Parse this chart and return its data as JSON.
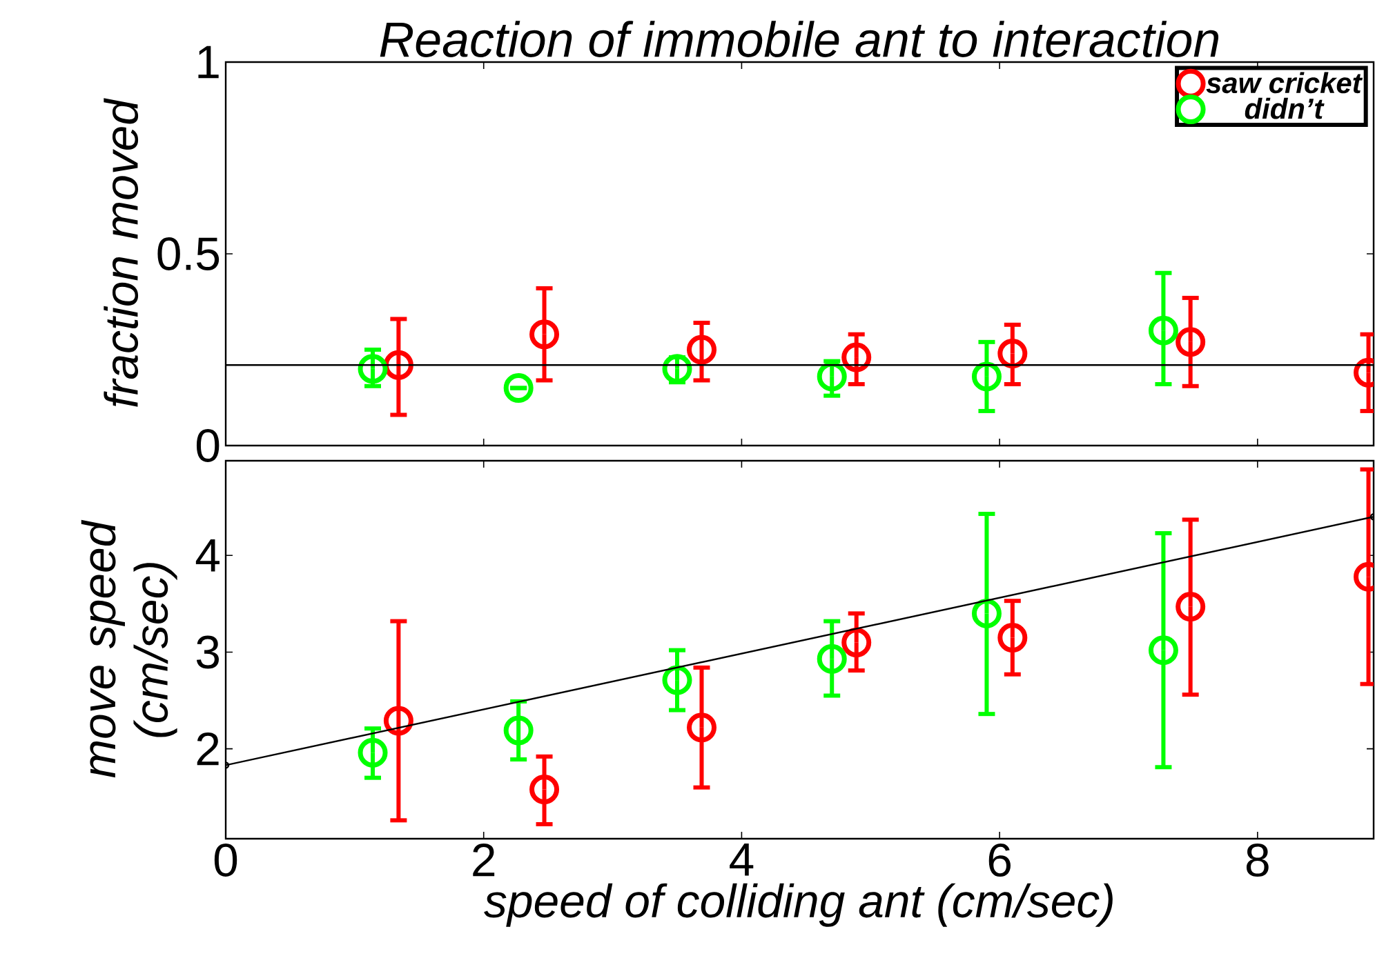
{
  "chart_data": [
    {
      "type": "scatter",
      "title": "Reaction of immobile ant to interaction",
      "ylabel": "fraction moved",
      "xlim": [
        0,
        8.9
      ],
      "xticks": [
        0,
        2,
        4,
        6,
        8
      ],
      "ylim": [
        0,
        1
      ],
      "yticks": [
        0,
        0.5,
        1
      ],
      "tick_labels": "y",
      "marker": "circle",
      "legend": "top right",
      "ref_lines": [
        {
          "axis": "y",
          "value": 0.21,
          "color": "#000000"
        }
      ],
      "series": [
        {
          "name": "saw cricket",
          "color": "#ff0000",
          "x": [
            1.34,
            2.47,
            3.69,
            4.89,
            6.1,
            7.48,
            8.86
          ],
          "values": [
            0.21,
            0.29,
            0.25,
            0.23,
            0.24,
            0.27,
            0.19
          ],
          "errors": [
            [
              0.08,
              0.33
            ],
            [
              0.17,
              0.41
            ],
            [
              0.17,
              0.32
            ],
            [
              0.16,
              0.29
            ],
            [
              0.16,
              0.315
            ],
            [
              0.155,
              0.385
            ],
            [
              0.09,
              0.29
            ]
          ]
        },
        {
          "name": "didn’t",
          "color": "#00ff00",
          "x": [
            1.14,
            2.27,
            3.5,
            4.7,
            5.9,
            7.27
          ],
          "values": [
            0.2,
            0.15,
            0.2,
            0.18,
            0.18,
            0.3
          ],
          "errors": [
            [
              0.155,
              0.25
            ],
            null,
            [
              0.165,
              0.23
            ],
            [
              0.13,
              0.22
            ],
            [
              0.09,
              0.27
            ],
            [
              0.16,
              0.45
            ]
          ]
        }
      ]
    },
    {
      "type": "scatter",
      "xlabel": "speed of colliding ant (cm/sec)",
      "ylabel": "move speed (cm/sec)",
      "xlim": [
        0,
        8.9
      ],
      "xticks": [
        0,
        2,
        4,
        6,
        8
      ],
      "ylim": [
        1.07,
        4.98
      ],
      "yticks": [
        2,
        3,
        4
      ],
      "marker": "circle",
      "series": [
        {
          "color": "#ff0000",
          "x": [
            1.34,
            2.47,
            3.69,
            4.89,
            6.1,
            7.48,
            8.86
          ],
          "values": [
            2.29,
            1.58,
            2.22,
            3.1,
            3.15,
            3.47,
            3.78
          ],
          "errors": [
            [
              1.26,
              3.32
            ],
            [
              1.22,
              1.92
            ],
            [
              1.6,
              2.84
            ],
            [
              2.81,
              3.4
            ],
            [
              2.77,
              3.53
            ],
            [
              2.56,
              4.37
            ],
            [
              2.67,
              4.89
            ]
          ]
        },
        {
          "color": "#00ff00",
          "x": [
            1.14,
            2.27,
            3.5,
            4.7,
            5.9,
            7.27
          ],
          "values": [
            1.96,
            2.19,
            2.71,
            2.93,
            3.4,
            3.02
          ],
          "errors": [
            [
              1.7,
              2.21
            ],
            [
              1.89,
              2.49
            ],
            [
              2.4,
              3.02
            ],
            [
              2.55,
              3.32
            ],
            [
              2.36,
              4.43
            ],
            [
              1.81,
              4.23
            ]
          ]
        },
        {
          "type": "line",
          "color": "#000000",
          "x": [
            0,
            8.9
          ],
          "values": [
            1.83,
            4.4
          ]
        }
      ]
    }
  ]
}
